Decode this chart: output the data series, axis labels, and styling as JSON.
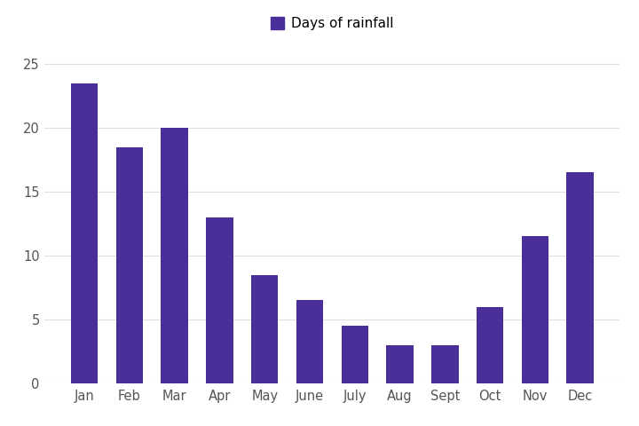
{
  "months": [
    "Jan",
    "Feb",
    "Mar",
    "Apr",
    "May",
    "June",
    "July",
    "Aug",
    "Sept",
    "Oct",
    "Nov",
    "Dec"
  ],
  "values": [
    23.5,
    18.5,
    20.0,
    13.0,
    8.5,
    6.5,
    4.5,
    3.0,
    3.0,
    6.0,
    11.5,
    16.5
  ],
  "bar_color": "#4a2f9a",
  "legend_label": "Days of rainfall",
  "legend_marker_color": "#4a2f9a",
  "yticks": [
    0,
    5,
    10,
    15,
    20,
    25
  ],
  "ylim": [
    0,
    26
  ],
  "background_color": "#ffffff",
  "grid_color": "#e0e0e0",
  "tick_color": "#555555",
  "bar_width": 0.6
}
